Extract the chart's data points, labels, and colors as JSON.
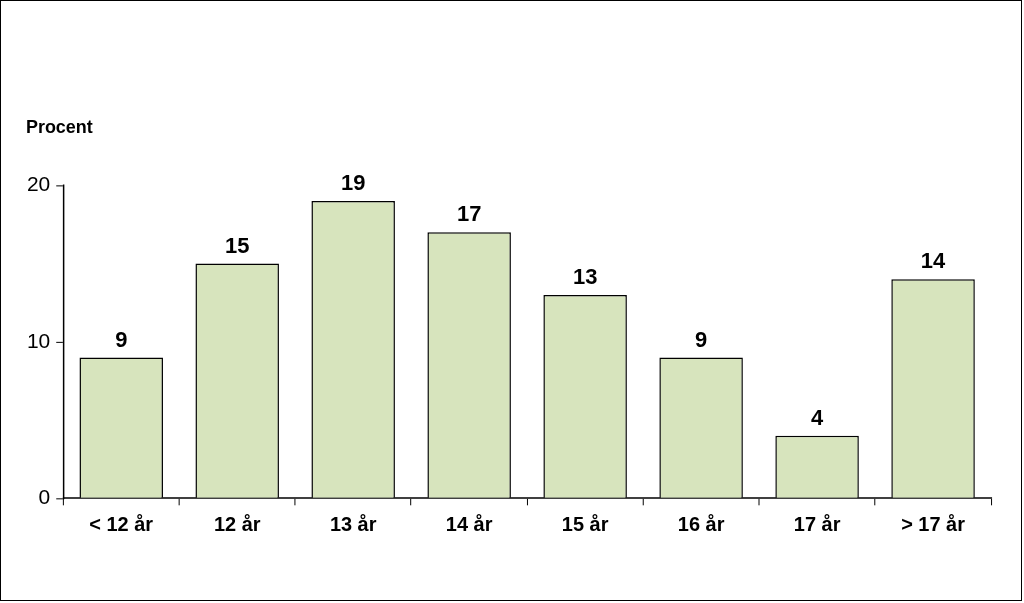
{
  "chart_data": {
    "type": "bar",
    "ylabel": "Procent",
    "categories": [
      "< 12 år",
      "12 år",
      "13 år",
      "14 år",
      "15 år",
      "16 år",
      "17 år",
      "> 17 år"
    ],
    "values": [
      9,
      15,
      19,
      17,
      13,
      9,
      4,
      14
    ],
    "color": "#d7e4bd",
    "ylim": [
      0,
      20
    ],
    "yticks": [
      0,
      10,
      20
    ],
    "grid": false,
    "legend": false,
    "data_labels": true
  }
}
